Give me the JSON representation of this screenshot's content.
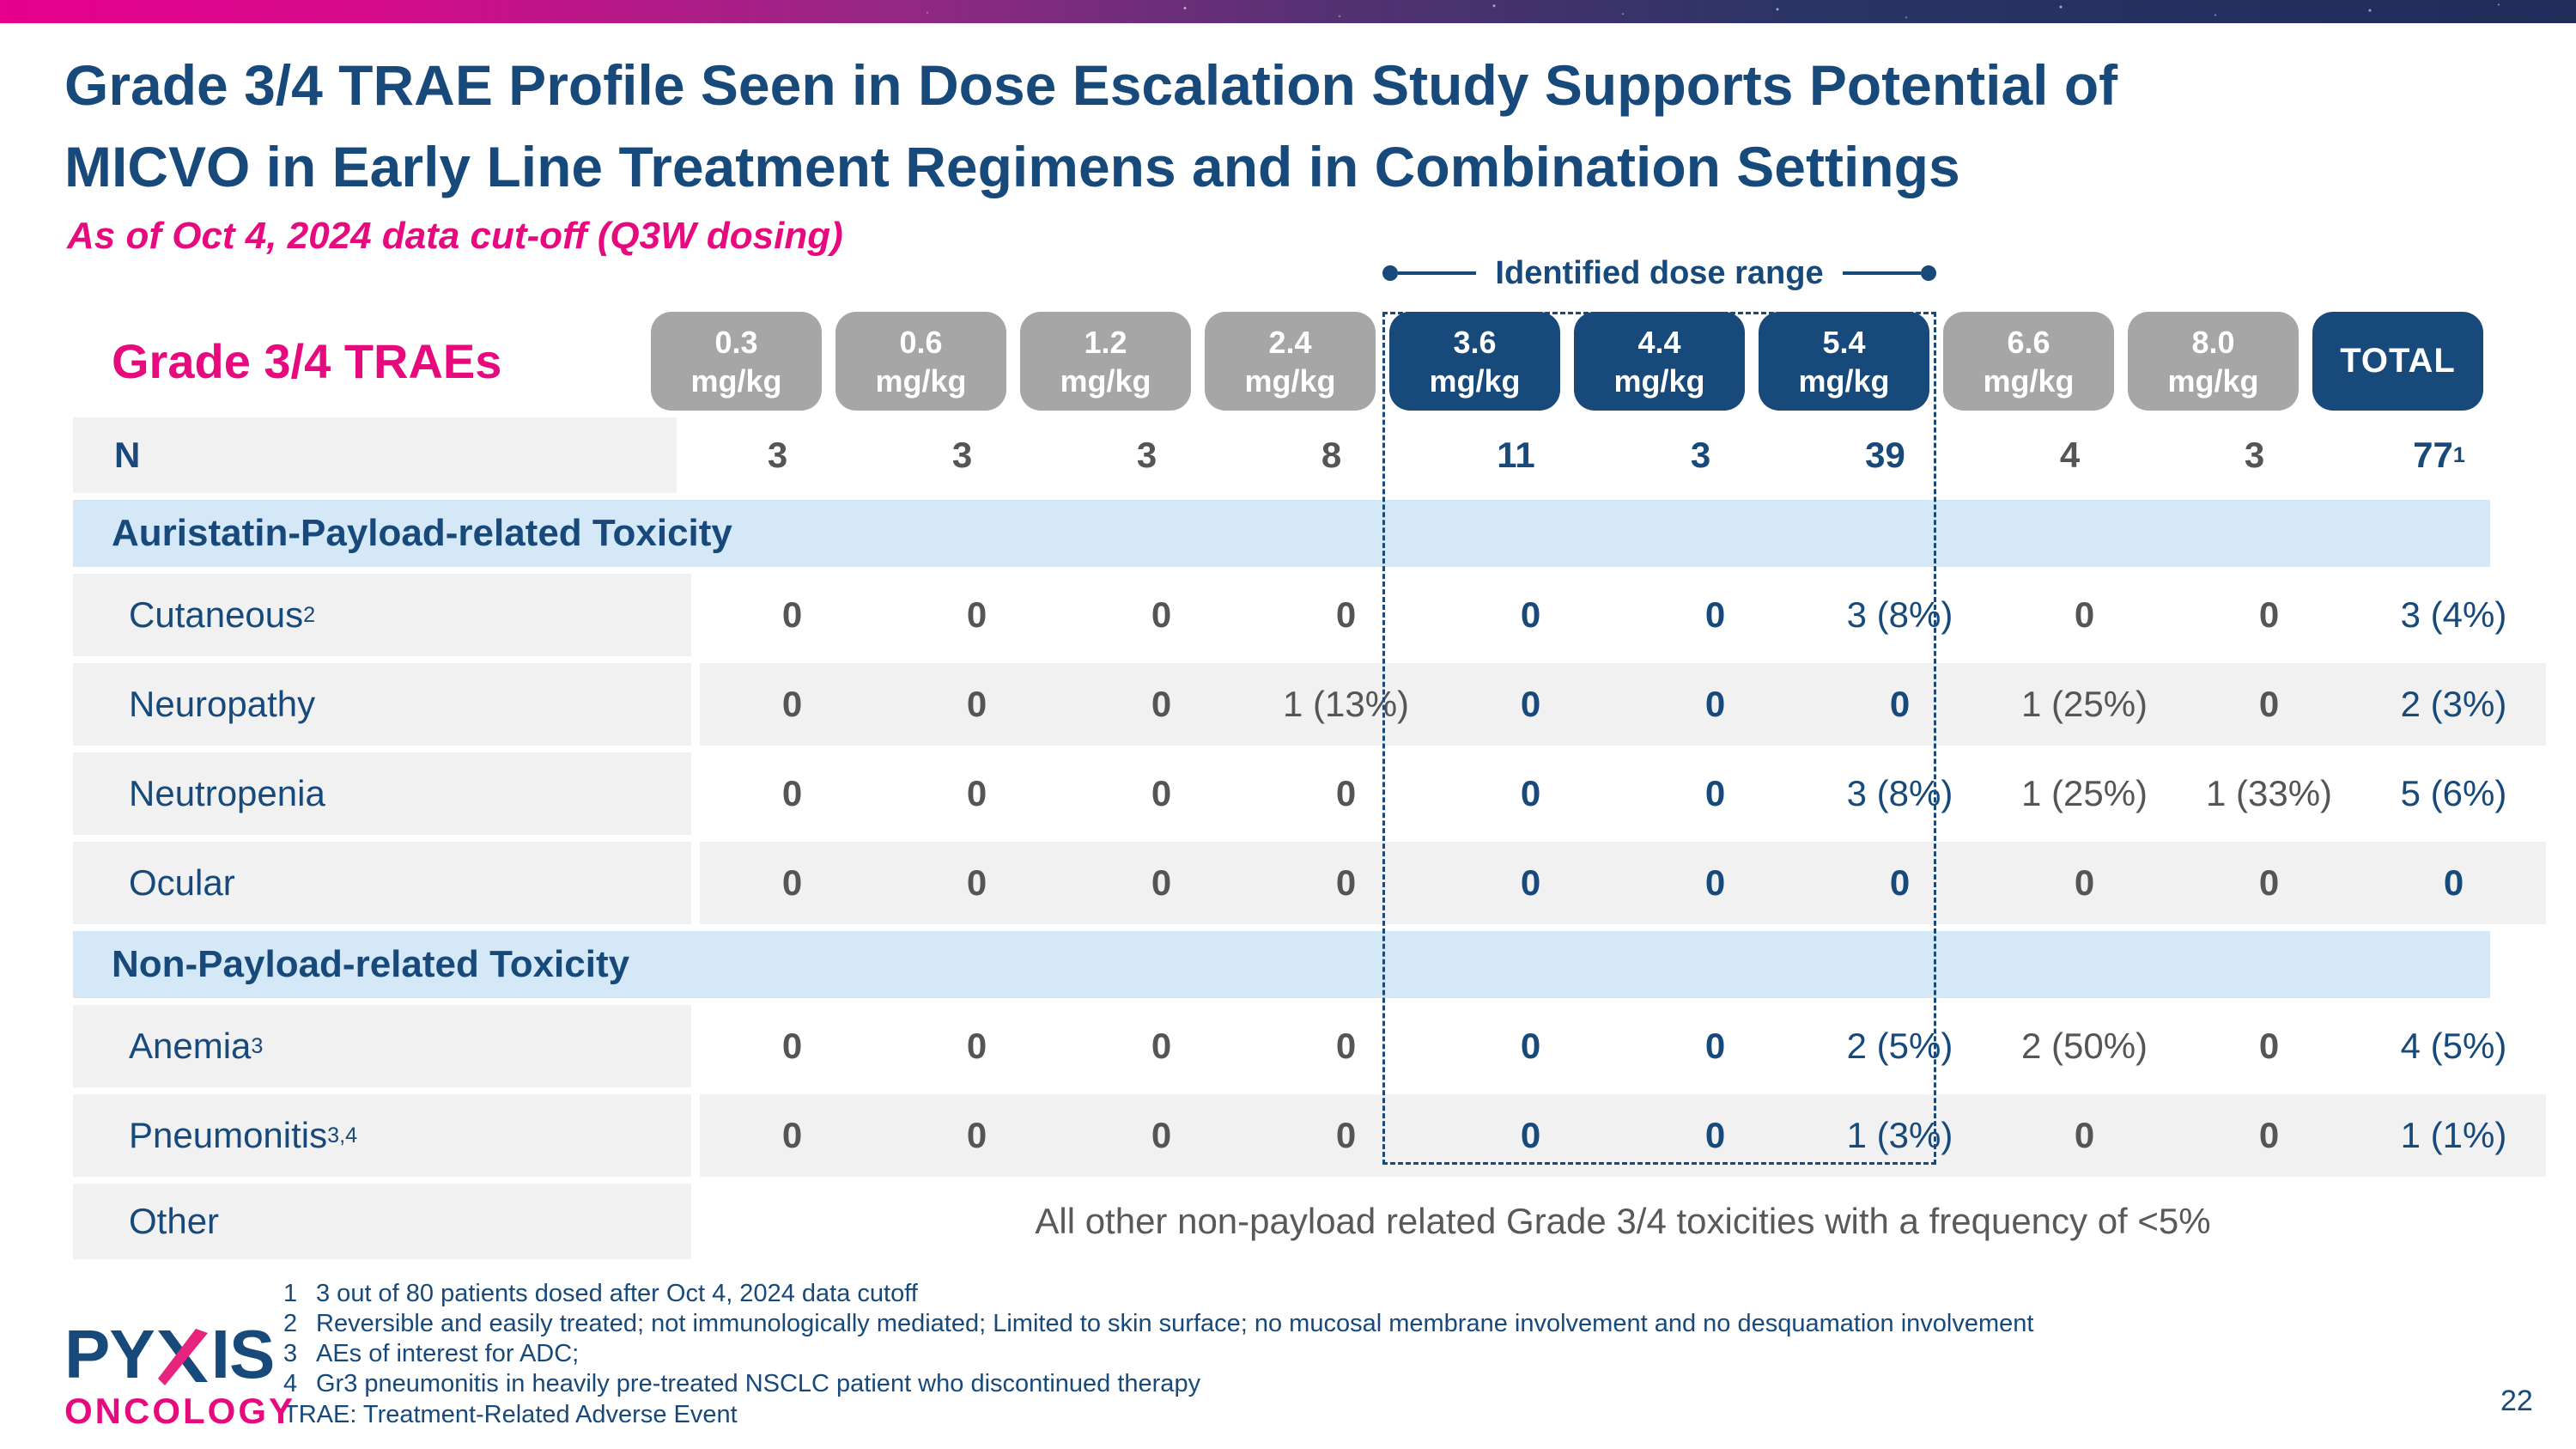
{
  "slide": {
    "title_line1": "Grade 3/4 TRAE Profile Seen in Dose Escalation Study Supports Potential of",
    "title_line2": "MICVO in Early Line Treatment Regimens and in Combination Settings",
    "subtitle": "As of Oct 4, 2024 data cut-off (Q3W dosing)",
    "page_number": "22"
  },
  "annotation": {
    "label": "Identified dose range"
  },
  "table": {
    "corner_label": "Grade 3/4 TRAEs",
    "columns": [
      {
        "dose": "0.3",
        "unit": "mg/kg",
        "theme": "gray"
      },
      {
        "dose": "0.6",
        "unit": "mg/kg",
        "theme": "gray"
      },
      {
        "dose": "1.2",
        "unit": "mg/kg",
        "theme": "gray"
      },
      {
        "dose": "2.4",
        "unit": "mg/kg",
        "theme": "gray"
      },
      {
        "dose": "3.6",
        "unit": "mg/kg",
        "theme": "navy"
      },
      {
        "dose": "4.4",
        "unit": "mg/kg",
        "theme": "navy"
      },
      {
        "dose": "5.4",
        "unit": "mg/kg",
        "theme": "navy"
      },
      {
        "dose": "6.6",
        "unit": "mg/kg",
        "theme": "gray"
      },
      {
        "dose": "8.0",
        "unit": "mg/kg",
        "theme": "gray"
      },
      {
        "dose": "TOTAL",
        "unit": "",
        "theme": "navy"
      }
    ],
    "identified_range_columns": [
      4,
      5,
      6
    ],
    "rows": [
      {
        "type": "n",
        "label": "N",
        "cells": [
          "3",
          "3",
          "3",
          "8",
          "11",
          "3",
          "39",
          "4",
          "3",
          "77"
        ],
        "total_sup": "1"
      },
      {
        "type": "section",
        "label": "Auristatin-Payload-related Toxicity"
      },
      {
        "type": "data",
        "label": "Cutaneous",
        "sup": "2",
        "stripe": false,
        "cells": [
          "0",
          "0",
          "0",
          "0",
          "0",
          "0",
          "3 (8%)",
          "0",
          "0",
          "3 (4%)"
        ]
      },
      {
        "type": "data",
        "label": "Neuropathy",
        "sup": "",
        "stripe": true,
        "cells": [
          "0",
          "0",
          "0",
          "1 (13%)",
          "0",
          "0",
          "0",
          "1 (25%)",
          "0",
          "2 (3%)"
        ]
      },
      {
        "type": "data",
        "label": "Neutropenia",
        "sup": "",
        "stripe": false,
        "cells": [
          "0",
          "0",
          "0",
          "0",
          "0",
          "0",
          "3 (8%)",
          "1 (25%)",
          "1 (33%)",
          "5 (6%)"
        ]
      },
      {
        "type": "data",
        "label": "Ocular",
        "sup": "",
        "stripe": true,
        "cells": [
          "0",
          "0",
          "0",
          "0",
          "0",
          "0",
          "0",
          "0",
          "0",
          "0"
        ]
      },
      {
        "type": "section",
        "label": "Non-Payload-related Toxicity"
      },
      {
        "type": "data",
        "label": "Anemia",
        "sup": "3",
        "stripe": false,
        "cells": [
          "0",
          "0",
          "0",
          "0",
          "0",
          "0",
          "2 (5%)",
          "2 (50%)",
          "0",
          "4 (5%)"
        ]
      },
      {
        "type": "data",
        "label": "Pneumonitis",
        "sup": "3,4",
        "stripe": true,
        "cells": [
          "0",
          "0",
          "0",
          "0",
          "0",
          "0",
          "1 (3%)",
          "0",
          "0",
          "1 (1%)"
        ]
      },
      {
        "type": "other",
        "label": "Other",
        "text": "All other non-payload related Grade 3/4 toxicities with a frequency of <5%"
      }
    ]
  },
  "footnotes": {
    "items": [
      {
        "num": "1",
        "text": "3 out of 80 patients dosed after Oct 4, 2024 data cutoff"
      },
      {
        "num": "2",
        "text": "Reversible and easily treated; not immunologically mediated; Limited to skin surface; no mucosal membrane involvement and no desquamation involvement"
      },
      {
        "num": "3",
        "text": "AEs of interest for ADC;"
      },
      {
        "num": "4",
        "text": "Gr3 pneumonitis in heavily pre-treated NSCLC patient who discontinued therapy"
      }
    ],
    "abbreviation": "TRAE: Treatment-Related Adverse Event"
  },
  "logo": {
    "word_start": "PY",
    "word_end": "IS",
    "subtext": "ONCOLOGY"
  },
  "colors": {
    "navy": "#17497a",
    "pink": "#e60a7e",
    "gray_pill": "#a6a6a6",
    "light_blue": "#d4e8f7",
    "row_gray": "#f1f1f1",
    "value_gray": "#555555"
  }
}
